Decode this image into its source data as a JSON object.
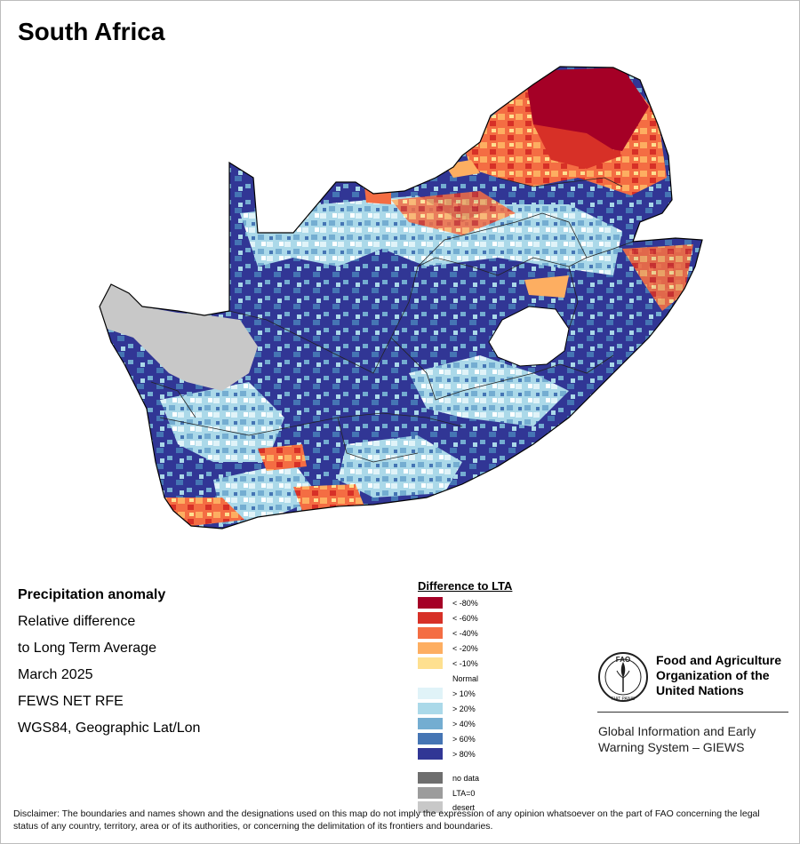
{
  "map": {
    "title": "South Africa",
    "info_lines": [
      "Precipitation anomaly",
      "Relative difference",
      "to Long Term Average",
      "March 2025",
      "FEWS NET RFE",
      "WGS84, Geographic Lat/Lon"
    ]
  },
  "legend": {
    "title": "Difference to LTA",
    "items": [
      {
        "label": "< -80%",
        "color": "#a50026"
      },
      {
        "label": "< -60%",
        "color": "#d73027"
      },
      {
        "label": "< -40%",
        "color": "#f46d43"
      },
      {
        "label": "< -20%",
        "color": "#fdae61"
      },
      {
        "label": "< -10%",
        "color": "#fee090"
      },
      {
        "label": "Normal",
        "color": "#ffffff"
      },
      {
        "label": "> 10%",
        "color": "#e0f3f8"
      },
      {
        "label": "> 20%",
        "color": "#abd9e9"
      },
      {
        "label": "> 40%",
        "color": "#74add1"
      },
      {
        "label": "> 60%",
        "color": "#4575b4"
      },
      {
        "label": "> 80%",
        "color": "#313695"
      }
    ],
    "extra_items": [
      {
        "label": "no data",
        "color": "#6e6e6e"
      },
      {
        "label": "LTA=0",
        "color": "#9c9c9c"
      },
      {
        "label": "desert",
        "color": "#c8c8c8"
      }
    ]
  },
  "fao": {
    "logo_letters": "FAO",
    "logo_motto": "FIAT PANIS",
    "org_name_lines": [
      "Food and Agriculture",
      "Organization of the",
      "United Nations"
    ],
    "system_lines": [
      "Global Information and Early",
      "Warning System – GIEWS"
    ]
  },
  "disclaimer": "Disclaimer: The boundaries and names shown and the designations used on this map do not imply the expression of any opinion whatsoever on the part of FAO concerning the legal status of any country, territory, area or of its authorities, or concerning the delimitation of its frontiers and boundaries."
}
